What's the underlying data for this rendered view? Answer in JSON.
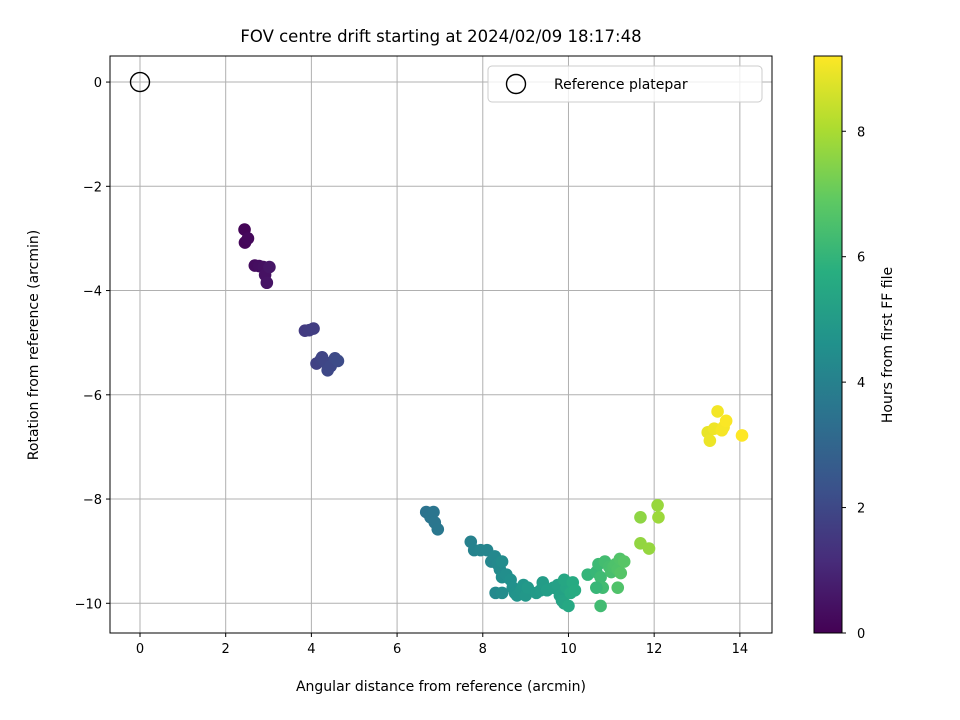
{
  "chart_data": {
    "type": "scatter",
    "title": "FOV centre drift starting at 2024/02/09 18:17:48",
    "xlabel": "Angular distance from reference (arcmin)",
    "ylabel": "Rotation from reference (arcmin)",
    "xlim": [
      -0.7,
      14.75
    ],
    "ylim": [
      -10.57,
      0.5
    ],
    "xticks": [
      0,
      2,
      4,
      6,
      8,
      10,
      12,
      14
    ],
    "yticks": [
      0,
      -2,
      -4,
      -6,
      -8,
      -10
    ],
    "xtick_labels": [
      "0",
      "2",
      "4",
      "6",
      "8",
      "10",
      "12",
      "14"
    ],
    "ytick_labels": [
      "0",
      "−2",
      "−4",
      "−6",
      "−8",
      "−10"
    ],
    "grid": true,
    "colormap": "viridis",
    "colorbar": {
      "label": "Hours from first FF file",
      "range": [
        0,
        9.2
      ],
      "ticks": [
        0,
        2,
        4,
        6,
        8
      ],
      "tick_labels": [
        "0",
        "2",
        "4",
        "6",
        "8"
      ]
    },
    "legend": {
      "position": "top-right",
      "entries": [
        "Reference platepar"
      ]
    },
    "reference_point": {
      "x": 0,
      "y": 0
    },
    "points": [
      {
        "x": 2.44,
        "y": -2.83,
        "h": 0.1
      },
      {
        "x": 2.45,
        "y": -3.08,
        "h": 0.15
      },
      {
        "x": 2.52,
        "y": -3.0,
        "h": 0.2
      },
      {
        "x": 2.68,
        "y": -3.52,
        "h": 0.3
      },
      {
        "x": 2.78,
        "y": -3.53,
        "h": 0.35
      },
      {
        "x": 2.88,
        "y": -3.55,
        "h": 0.4
      },
      {
        "x": 2.92,
        "y": -3.7,
        "h": 0.45
      },
      {
        "x": 2.96,
        "y": -3.85,
        "h": 0.5
      },
      {
        "x": 3.02,
        "y": -3.55,
        "h": 0.55
      },
      {
        "x": 3.85,
        "y": -4.77,
        "h": 1.6
      },
      {
        "x": 3.95,
        "y": -4.76,
        "h": 1.65
      },
      {
        "x": 4.05,
        "y": -4.73,
        "h": 1.7
      },
      {
        "x": 4.12,
        "y": -5.4,
        "h": 1.8
      },
      {
        "x": 4.22,
        "y": -5.33,
        "h": 1.85
      },
      {
        "x": 4.25,
        "y": -5.28,
        "h": 1.9
      },
      {
        "x": 4.33,
        "y": -5.38,
        "h": 1.95
      },
      {
        "x": 4.38,
        "y": -5.53,
        "h": 2.0
      },
      {
        "x": 4.45,
        "y": -5.45,
        "h": 2.0
      },
      {
        "x": 4.55,
        "y": -5.3,
        "h": 2.05
      },
      {
        "x": 4.62,
        "y": -5.35,
        "h": 2.1
      },
      {
        "x": 6.68,
        "y": -8.25,
        "h": 3.5
      },
      {
        "x": 6.78,
        "y": -8.35,
        "h": 3.55
      },
      {
        "x": 6.85,
        "y": -8.25,
        "h": 3.55
      },
      {
        "x": 6.88,
        "y": -8.45,
        "h": 3.6
      },
      {
        "x": 6.95,
        "y": -8.58,
        "h": 3.65
      },
      {
        "x": 7.72,
        "y": -8.82,
        "h": 4.0
      },
      {
        "x": 7.8,
        "y": -8.98,
        "h": 4.05
      },
      {
        "x": 7.95,
        "y": -8.98,
        "h": 4.1
      },
      {
        "x": 8.1,
        "y": -8.98,
        "h": 4.15
      },
      {
        "x": 8.2,
        "y": -9.2,
        "h": 4.2
      },
      {
        "x": 8.28,
        "y": -9.1,
        "h": 4.25
      },
      {
        "x": 8.35,
        "y": -9.25,
        "h": 4.3
      },
      {
        "x": 8.4,
        "y": -9.35,
        "h": 4.35
      },
      {
        "x": 8.45,
        "y": -9.2,
        "h": 4.4
      },
      {
        "x": 8.45,
        "y": -9.5,
        "h": 4.45
      },
      {
        "x": 8.55,
        "y": -9.45,
        "h": 4.5
      },
      {
        "x": 8.65,
        "y": -9.55,
        "h": 4.55
      },
      {
        "x": 8.7,
        "y": -9.7,
        "h": 4.6
      },
      {
        "x": 8.75,
        "y": -9.8,
        "h": 4.65
      },
      {
        "x": 8.8,
        "y": -9.85,
        "h": 4.7
      },
      {
        "x": 8.9,
        "y": -9.75,
        "h": 4.75
      },
      {
        "x": 8.95,
        "y": -9.65,
        "h": 4.8
      },
      {
        "x": 9.0,
        "y": -9.85,
        "h": 4.85
      },
      {
        "x": 9.05,
        "y": -9.7,
        "h": 4.9
      },
      {
        "x": 8.3,
        "y": -9.8,
        "h": 4.3
      },
      {
        "x": 8.45,
        "y": -9.8,
        "h": 4.4
      },
      {
        "x": 9.25,
        "y": -9.8,
        "h": 4.95
      },
      {
        "x": 9.35,
        "y": -9.75,
        "h": 5.0
      },
      {
        "x": 9.4,
        "y": -9.6,
        "h": 5.05
      },
      {
        "x": 9.5,
        "y": -9.75,
        "h": 5.1
      },
      {
        "x": 9.65,
        "y": -9.7,
        "h": 5.15
      },
      {
        "x": 9.75,
        "y": -9.65,
        "h": 5.2
      },
      {
        "x": 9.8,
        "y": -9.85,
        "h": 5.25
      },
      {
        "x": 9.85,
        "y": -9.95,
        "h": 5.3
      },
      {
        "x": 9.9,
        "y": -10.0,
        "h": 5.35
      },
      {
        "x": 9.95,
        "y": -9.7,
        "h": 5.4
      },
      {
        "x": 9.9,
        "y": -9.55,
        "h": 5.45
      },
      {
        "x": 10.0,
        "y": -10.05,
        "h": 5.5
      },
      {
        "x": 10.05,
        "y": -9.8,
        "h": 5.55
      },
      {
        "x": 10.1,
        "y": -9.6,
        "h": 5.6
      },
      {
        "x": 10.15,
        "y": -9.75,
        "h": 5.65
      },
      {
        "x": 10.45,
        "y": -9.45,
        "h": 6.0
      },
      {
        "x": 10.65,
        "y": -9.4,
        "h": 6.1
      },
      {
        "x": 10.7,
        "y": -9.25,
        "h": 6.2
      },
      {
        "x": 10.75,
        "y": -9.5,
        "h": 6.25
      },
      {
        "x": 10.8,
        "y": -9.7,
        "h": 6.3
      },
      {
        "x": 10.85,
        "y": -9.2,
        "h": 6.35
      },
      {
        "x": 10.95,
        "y": -9.3,
        "h": 6.4
      },
      {
        "x": 11.0,
        "y": -9.4,
        "h": 6.45
      },
      {
        "x": 11.05,
        "y": -9.3,
        "h": 6.5
      },
      {
        "x": 11.1,
        "y": -9.25,
        "h": 6.55
      },
      {
        "x": 11.15,
        "y": -9.35,
        "h": 6.6
      },
      {
        "x": 11.2,
        "y": -9.15,
        "h": 6.65
      },
      {
        "x": 11.22,
        "y": -9.42,
        "h": 6.7
      },
      {
        "x": 11.3,
        "y": -9.2,
        "h": 6.75
      },
      {
        "x": 10.75,
        "y": -10.05,
        "h": 6.3
      },
      {
        "x": 11.15,
        "y": -9.7,
        "h": 6.6
      },
      {
        "x": 10.65,
        "y": -9.7,
        "h": 6.1
      },
      {
        "x": 11.68,
        "y": -8.35,
        "h": 7.6
      },
      {
        "x": 11.68,
        "y": -8.85,
        "h": 7.65
      },
      {
        "x": 11.88,
        "y": -8.95,
        "h": 7.7
      },
      {
        "x": 12.08,
        "y": -8.12,
        "h": 7.75
      },
      {
        "x": 12.1,
        "y": -8.35,
        "h": 7.8
      },
      {
        "x": 13.25,
        "y": -6.72,
        "h": 8.9
      },
      {
        "x": 13.3,
        "y": -6.88,
        "h": 8.95
      },
      {
        "x": 13.4,
        "y": -6.65,
        "h": 9.0
      },
      {
        "x": 13.48,
        "y": -6.32,
        "h": 9.05
      },
      {
        "x": 13.58,
        "y": -6.68,
        "h": 9.1
      },
      {
        "x": 13.62,
        "y": -6.62,
        "h": 9.1
      },
      {
        "x": 13.68,
        "y": -6.5,
        "h": 9.15
      },
      {
        "x": 14.05,
        "y": -6.78,
        "h": 9.2
      }
    ]
  }
}
